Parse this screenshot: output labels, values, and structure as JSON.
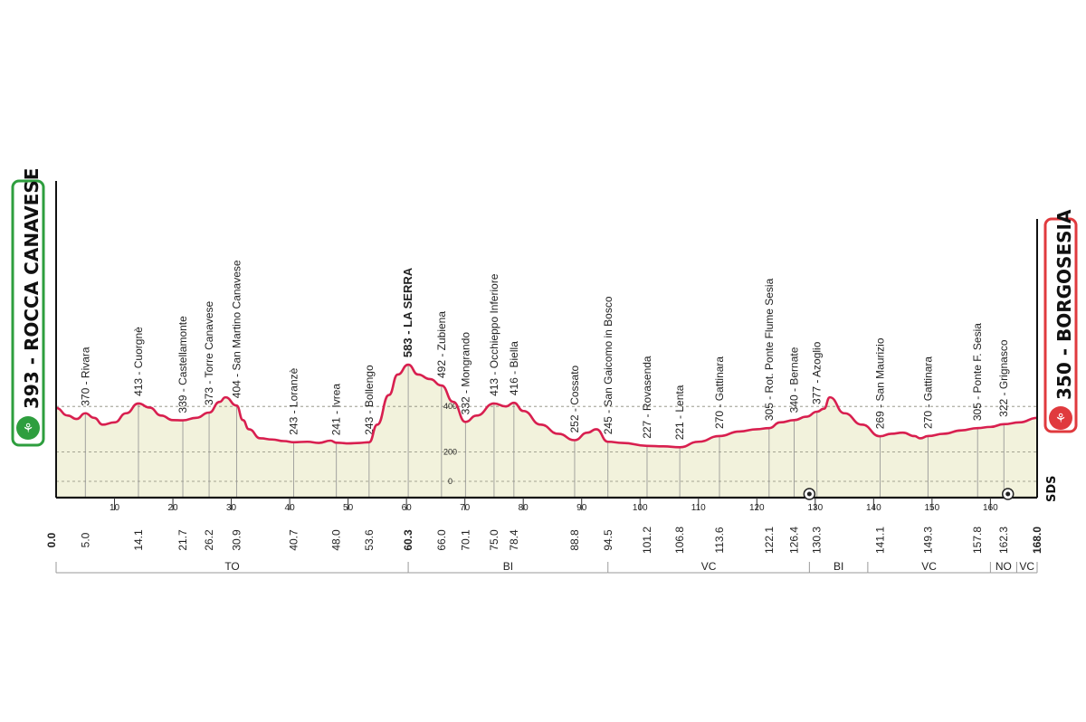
{
  "start": {
    "label": "393 - ROCCA CANAVESE",
    "color": "#2e9e3e"
  },
  "finish": {
    "label": "350 - BORGOSESIA",
    "color": "#e03a3e"
  },
  "brand": "SDS",
  "colors": {
    "profile_line": "#d81f4f",
    "profile_fill": "#f2f2dc",
    "axis": "#111111",
    "province": "#9a9a9a"
  },
  "chart_data": {
    "type": "area",
    "title": "",
    "xlabel": "",
    "ylabel": "",
    "xlim": [
      0,
      168
    ],
    "ylim": [
      0,
      700
    ],
    "yticks": [
      0,
      200,
      400
    ],
    "xticks": [
      10,
      20,
      30,
      40,
      50,
      60,
      70,
      80,
      90,
      100,
      110,
      120,
      130,
      140,
      150,
      160
    ],
    "series": [
      {
        "x": [
          0,
          2,
          3.5,
          5,
          6.5,
          8,
          10,
          12,
          14.1,
          16,
          18,
          20,
          21.7,
          24,
          26.2,
          28,
          29,
          30.9,
          32,
          33,
          35,
          37,
          39,
          40.7,
          43,
          45,
          47,
          48,
          50,
          52,
          53.6,
          55,
          57,
          58.5,
          60.3,
          62,
          64,
          66,
          68,
          70.1,
          72,
          75,
          77,
          78.4,
          80,
          83,
          86,
          88.8,
          91,
          92.5,
          94.5,
          97,
          101.2,
          104,
          106.8,
          110,
          113.6,
          117,
          120,
          122.1,
          124,
          126.4,
          128.5,
          130.3,
          131.5,
          132.5,
          135,
          138,
          141.1,
          143,
          145,
          147,
          148,
          149.3,
          152,
          155,
          157.8,
          160,
          162.3,
          165,
          168
        ],
        "y": [
          393,
          360,
          345,
          370,
          350,
          320,
          330,
          370,
          413,
          395,
          360,
          340,
          339,
          350,
          373,
          420,
          440,
          404,
          340,
          300,
          260,
          255,
          248,
          243,
          245,
          240,
          250,
          241,
          238,
          240,
          243,
          320,
          450,
          540,
          583,
          540,
          520,
          492,
          420,
          332,
          360,
          413,
          400,
          416,
          380,
          320,
          280,
          252,
          285,
          300,
          245,
          240,
          227,
          225,
          221,
          245,
          270,
          290,
          300,
          305,
          330,
          340,
          355,
          377,
          390,
          440,
          370,
          320,
          269,
          280,
          285,
          270,
          260,
          270,
          280,
          295,
          305,
          310,
          322,
          330,
          350
        ]
      }
    ],
    "locations": [
      {
        "km": 5.0,
        "km_label": "5.0",
        "text": "370 - Rivara"
      },
      {
        "km": 14.1,
        "km_label": "14.1",
        "text": "413 - Cuorgnè"
      },
      {
        "km": 21.7,
        "km_label": "21.7",
        "text": "339 - Castellamonte"
      },
      {
        "km": 26.2,
        "km_label": "26.2",
        "text": "373 - Torre Canavese"
      },
      {
        "km": 30.9,
        "km_label": "30.9",
        "text": "404 - San Martino Canavese"
      },
      {
        "km": 40.7,
        "km_label": "40.7",
        "text": "243 - Loranzè"
      },
      {
        "km": 48.0,
        "km_label": "48.0",
        "text": "241 - Ivrea"
      },
      {
        "km": 53.6,
        "km_label": "53.6",
        "text": "243 - Bollengo"
      },
      {
        "km": 60.3,
        "km_label": "60.3",
        "text": "583 - LA SERRA",
        "bold": true
      },
      {
        "km": 66.0,
        "km_label": "66.0",
        "text": "492 - Zubiena"
      },
      {
        "km": 70.1,
        "km_label": "70.1",
        "text": "332 - Mongrando"
      },
      {
        "km": 75.0,
        "km_label": "75.0",
        "text": "413 - Occhieppo Inferiore"
      },
      {
        "km": 78.4,
        "km_label": "78.4",
        "text": "416 - Biella"
      },
      {
        "km": 88.8,
        "km_label": "88.8",
        "text": "252 - Cossato"
      },
      {
        "km": 94.5,
        "km_label": "94.5",
        "text": "245 - San Gaicomo in Bosco"
      },
      {
        "km": 101.2,
        "km_label": "101.2",
        "text": "227 - Rovasenda"
      },
      {
        "km": 106.8,
        "km_label": "106.8",
        "text": "221 - Lenta"
      },
      {
        "km": 113.6,
        "km_label": "113.6",
        "text": "270 - Gattinara"
      },
      {
        "km": 122.1,
        "km_label": "122.1",
        "text": "305 - Rot. Ponte Flume Sesia"
      },
      {
        "km": 126.4,
        "km_label": "126.4",
        "text": "340 - Bernate"
      },
      {
        "km": 130.3,
        "km_label": "130.3",
        "text": "377 - Azoglio"
      },
      {
        "km": 141.1,
        "km_label": "141.1",
        "text": "269 - San Maurizio"
      },
      {
        "km": 149.3,
        "km_label": "149.3",
        "text": "270 - Gattinara"
      },
      {
        "km": 157.8,
        "km_label": "157.8",
        "text": "305 - Ponte F. Sesia"
      },
      {
        "km": 162.3,
        "km_label": "162.3",
        "text": "322 - Grignasco"
      }
    ],
    "start_km_label": "0.0",
    "finish_km_label": "168.0",
    "provinces": [
      {
        "label": "TO",
        "from": 0,
        "to": 60.3
      },
      {
        "label": "BI",
        "from": 60.3,
        "to": 94.5
      },
      {
        "label": "VC",
        "from": 94.5,
        "to": 129
      },
      {
        "label": "BI",
        "from": 129,
        "to": 139
      },
      {
        "label": "VC",
        "from": 139,
        "to": 160
      },
      {
        "label": "NO",
        "from": 160,
        "to": 164.5
      },
      {
        "label": "VC",
        "from": 164.5,
        "to": 168
      }
    ],
    "markers": [
      {
        "km": 129,
        "icon": "sprint-icon"
      },
      {
        "km": 163,
        "icon": "finish-km-icon"
      }
    ]
  }
}
